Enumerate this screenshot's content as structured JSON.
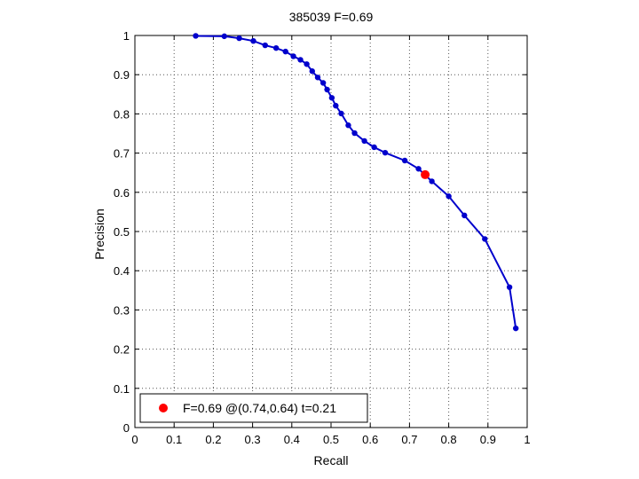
{
  "chart_data": {
    "type": "line",
    "title": "385039 F=0.69",
    "xlabel": "Recall",
    "ylabel": "Precision",
    "xlim": [
      0,
      1
    ],
    "ylim": [
      0,
      1
    ],
    "xticks": [
      "0",
      "0.1",
      "0.2",
      "0.3",
      "0.4",
      "0.5",
      "0.6",
      "0.7",
      "0.8",
      "0.9",
      "1"
    ],
    "yticks": [
      "0",
      "0.1",
      "0.2",
      "0.3",
      "0.4",
      "0.5",
      "0.6",
      "0.7",
      "0.8",
      "0.9",
      "1"
    ],
    "grid": true,
    "legend_position": "bottom-left",
    "series": [
      {
        "color": "#0000cc",
        "x": [
          0.155,
          0.228,
          0.266,
          0.302,
          0.332,
          0.36,
          0.384,
          0.404,
          0.422,
          0.438,
          0.452,
          0.466,
          0.48,
          0.49,
          0.502,
          0.512,
          0.526,
          0.544,
          0.56,
          0.585,
          0.61,
          0.638,
          0.688,
          0.723,
          0.757,
          0.8,
          0.84,
          0.892,
          0.955,
          0.971
        ],
        "y": [
          0.999,
          0.998,
          0.993,
          0.986,
          0.975,
          0.968,
          0.959,
          0.947,
          0.938,
          0.927,
          0.909,
          0.893,
          0.879,
          0.862,
          0.841,
          0.821,
          0.801,
          0.771,
          0.751,
          0.731,
          0.715,
          0.701,
          0.681,
          0.66,
          0.628,
          0.59,
          0.541,
          0.481,
          0.358,
          0.253
        ]
      }
    ],
    "highlight": {
      "x": 0.74,
      "y": 0.645,
      "color": "#ff0000",
      "label": "F=0.69 @(0.74,0.64) t=0.21"
    }
  }
}
